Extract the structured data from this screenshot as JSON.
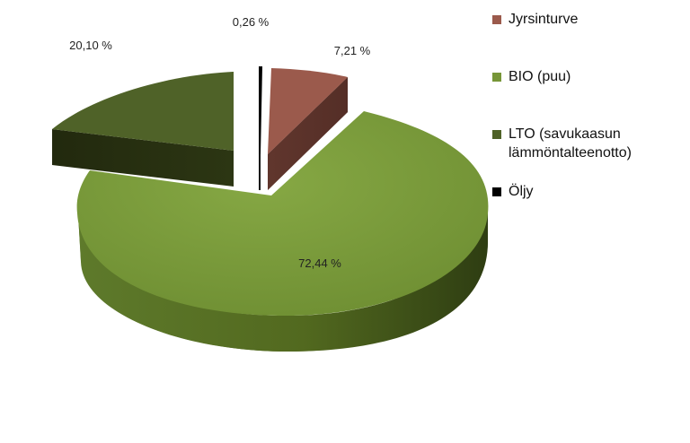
{
  "chart_data": {
    "type": "pie",
    "title": "",
    "legend_position": "right",
    "slices": [
      {
        "key": "jyrsinturve",
        "label": "Jyrsinturve",
        "value": 7.21,
        "display": "7,21 %",
        "color": "#9b5a4c"
      },
      {
        "key": "bio",
        "label": "BIO (puu)",
        "value": 72.44,
        "display": "72,44 %",
        "color": "#779638"
      },
      {
        "key": "lto",
        "label": "LTO (savukaasun\nlämmöntalteenotto)",
        "value": 20.1,
        "display": "20,10 %",
        "color": "#4f6228"
      },
      {
        "key": "oljy",
        "label": "Öljy",
        "value": 0.26,
        "display": "0,26 %",
        "color": "#000000"
      }
    ]
  }
}
